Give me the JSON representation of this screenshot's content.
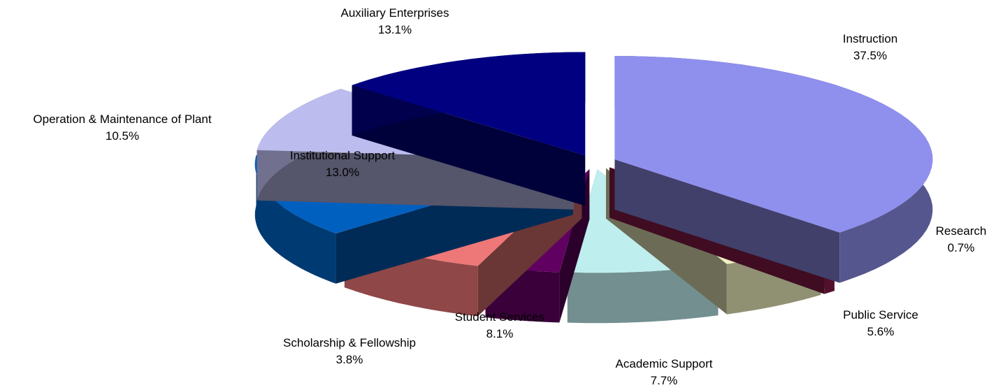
{
  "chart_data": {
    "type": "pie3d",
    "categories": [
      "Instruction",
      "Research",
      "Public Service",
      "Academic Support",
      "Scholarship & Fellowship",
      "Student Services",
      "Institutional Support",
      "Operation & Maintenance of Plant",
      "Auxiliary Enterprises"
    ],
    "values": [
      37.5,
      0.7,
      5.6,
      7.7,
      3.8,
      8.1,
      13.0,
      10.5,
      13.1
    ],
    "value_labels": [
      "37.5%",
      "0.7%",
      "5.6%",
      "7.7%",
      "3.8%",
      "8.1%",
      "13.0%",
      "10.5%",
      "13.1%"
    ],
    "colors": [
      "#8f8fee",
      "#8b1a4a",
      "#f0f0c0",
      "#bfeeee",
      "#600060",
      "#ee7777",
      "#0060c0",
      "#bcbcee",
      "#000080"
    ]
  }
}
